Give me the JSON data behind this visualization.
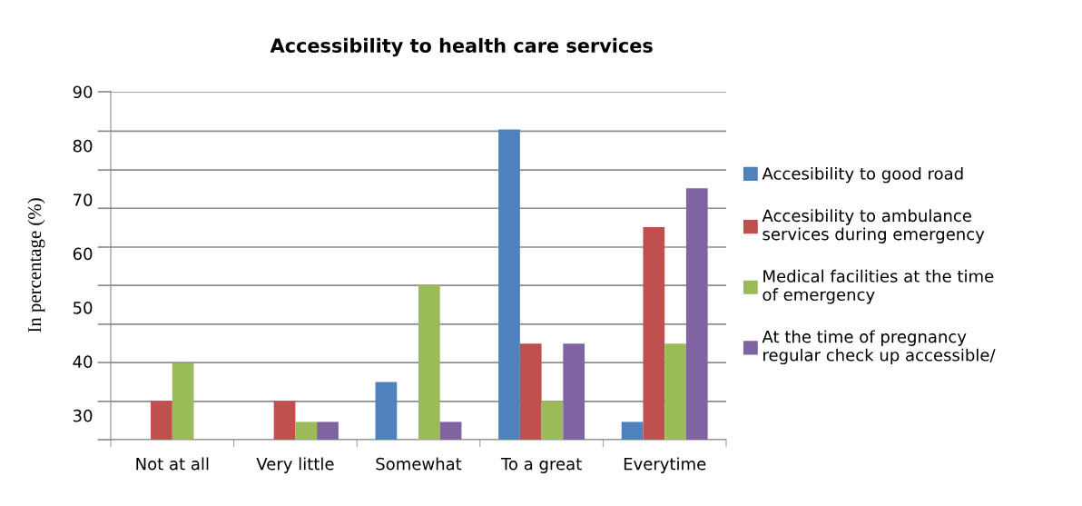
{
  "chart_data": {
    "type": "bar",
    "title": "Accessibility to health care services",
    "ylabel": "In percentage (%)",
    "categories": [
      "Not at all",
      "Very little",
      "Somewhat",
      "To a great",
      "Everytime"
    ],
    "series": [
      {
        "name": "Accesibility to good road",
        "color": "#4f81bd",
        "values": [
          null,
          null,
          36.2,
          83.0,
          28.8
        ]
      },
      {
        "name": "Accesibility to ambulance services during emergency",
        "color": "#c0504d",
        "values": [
          32.7,
          32.7,
          null,
          43.3,
          64.9
        ]
      },
      {
        "name": "Medical facilities at the time of emergency",
        "color": "#9bbb59",
        "values": [
          39.7,
          28.8,
          54.2,
          32.7,
          43.3
        ]
      },
      {
        "name": "At the time of pregnancy regular check up accessible/",
        "color": "#8064a2",
        "values": [
          null,
          28.8,
          28.8,
          43.3,
          72.1
        ]
      }
    ],
    "ylim": [
      25.5,
      90
    ],
    "yticks": [
      {
        "value": 30,
        "label": "30"
      },
      {
        "value": 32.6,
        "label": null
      },
      {
        "value": 39.8,
        "label": null
      },
      {
        "value": 40,
        "label": "40"
      },
      {
        "value": 46.9,
        "label": null
      },
      {
        "value": 50,
        "label": "50"
      },
      {
        "value": 54.1,
        "label": null
      },
      {
        "value": 60,
        "label": "60"
      },
      {
        "value": 61.2,
        "label": null
      },
      {
        "value": 68.4,
        "label": null
      },
      {
        "value": 70,
        "label": "70"
      },
      {
        "value": 75.5,
        "label": null
      },
      {
        "value": 80,
        "label": "80"
      },
      {
        "value": 82.7,
        "label": null
      },
      {
        "value": 90,
        "label": "90"
      }
    ],
    "grid": "y",
    "legend": "right"
  }
}
